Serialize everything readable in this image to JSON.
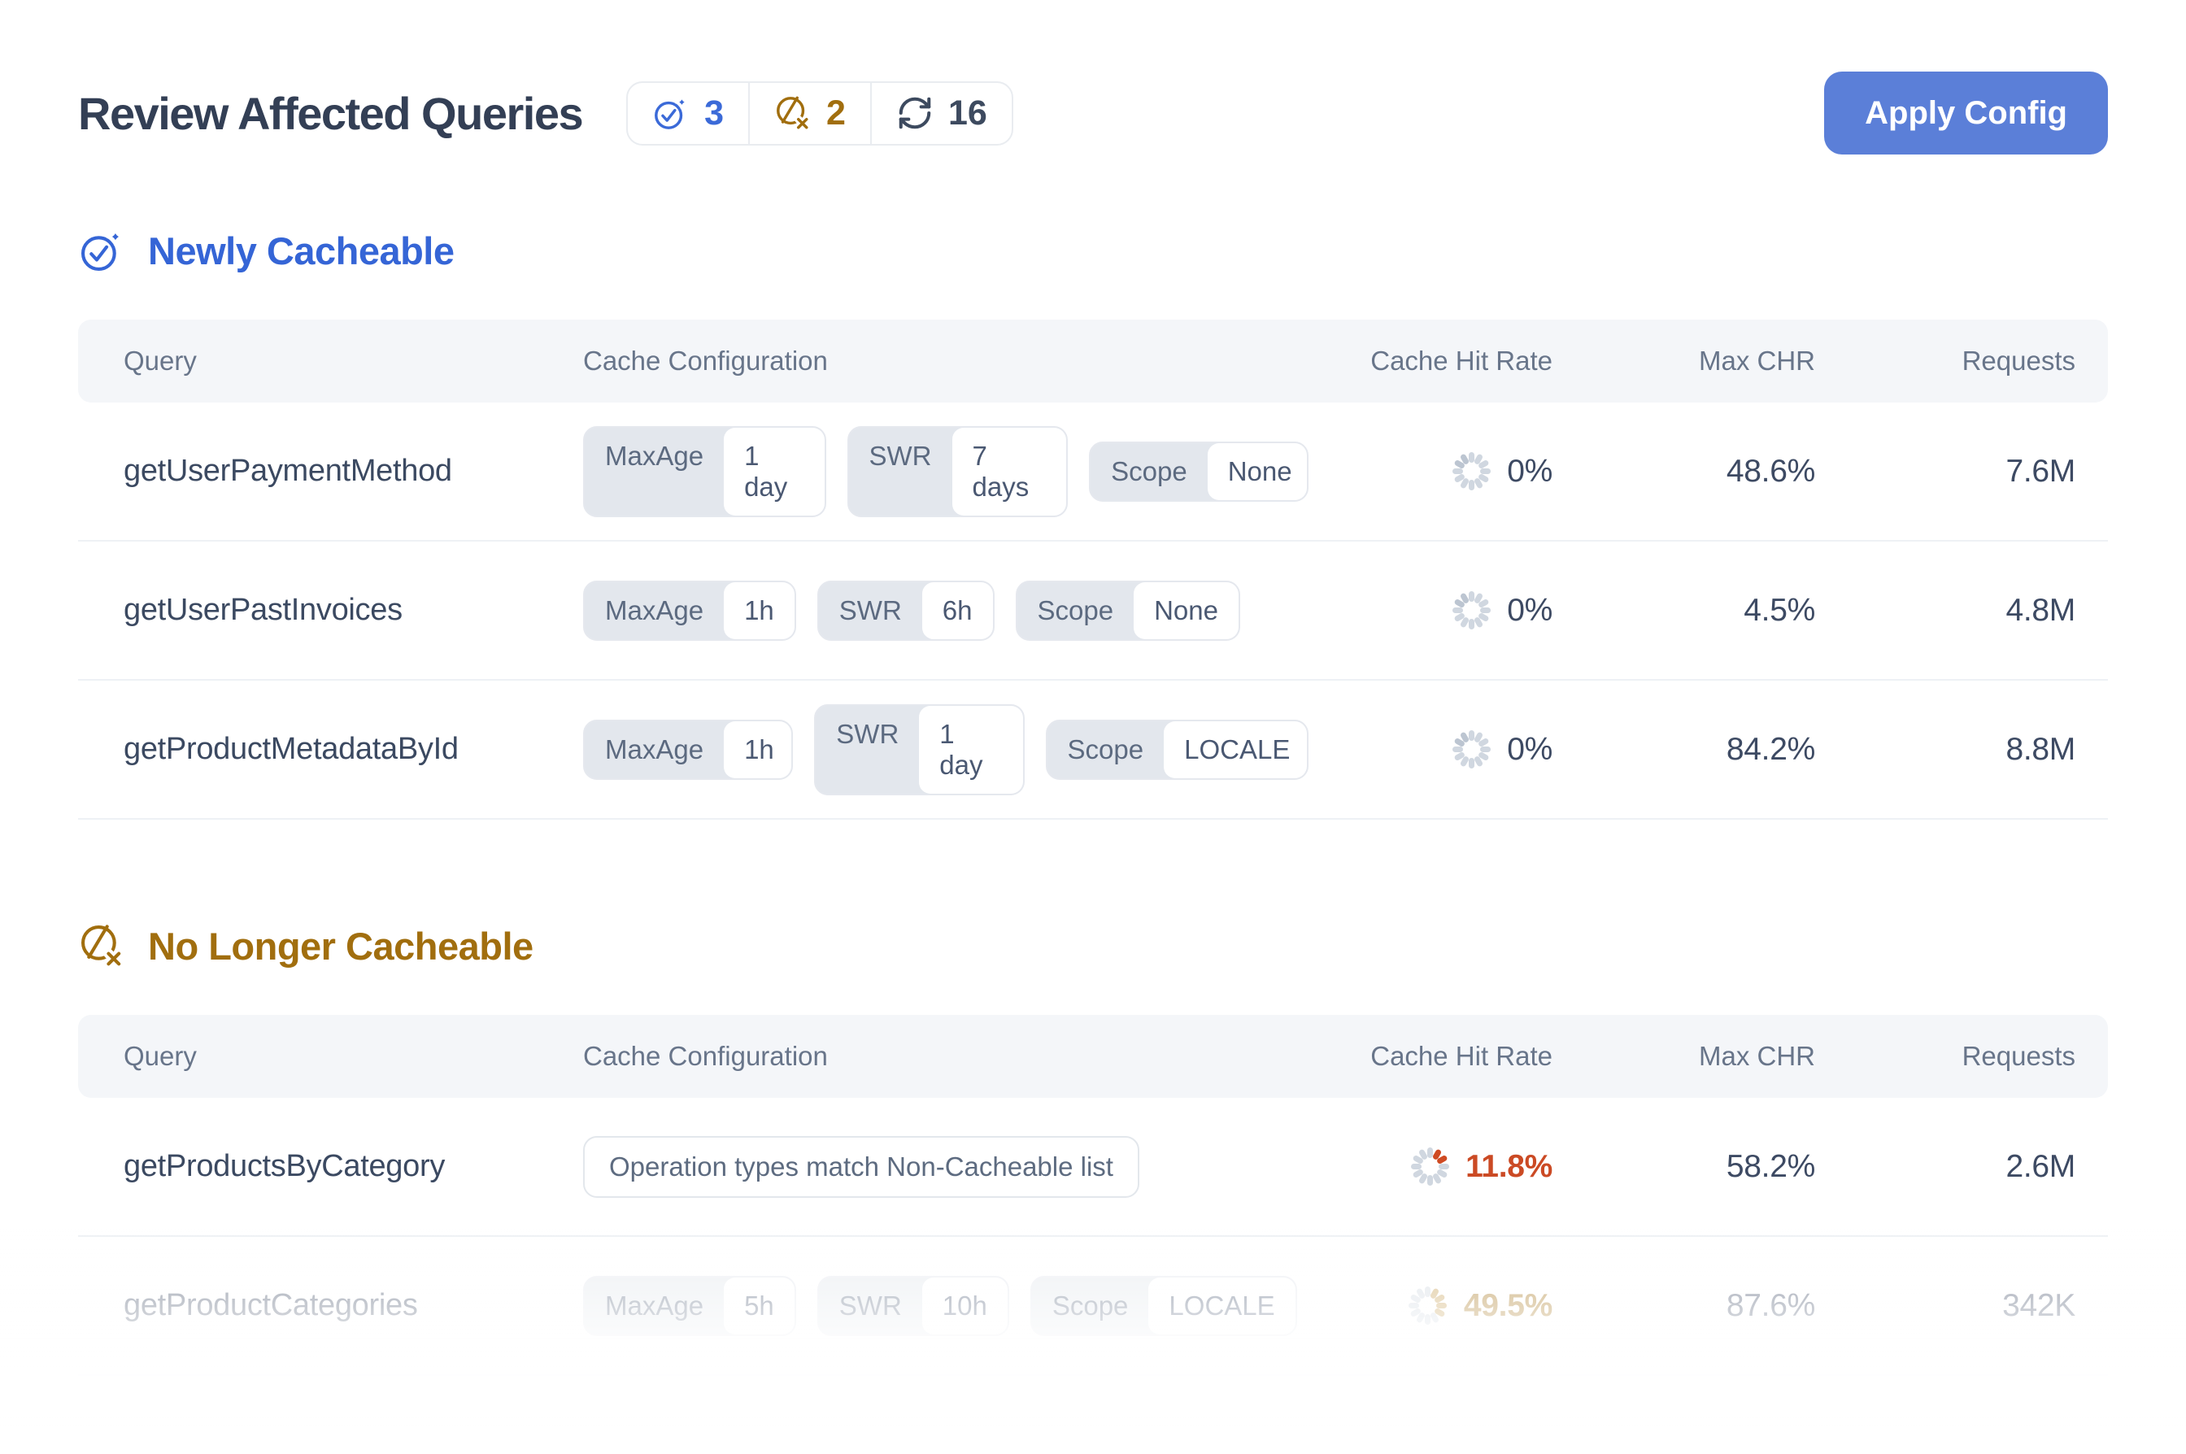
{
  "header": {
    "title": "Review Affected Queries",
    "apply_label": "Apply Config",
    "badges": [
      {
        "name": "newly-cacheable-count",
        "value": "3"
      },
      {
        "name": "no-longer-cacheable-count",
        "value": "2"
      },
      {
        "name": "recheck-count",
        "value": "16"
      }
    ]
  },
  "table_columns": {
    "query": "Query",
    "config": "Cache Configuration",
    "chr": "Cache Hit Rate",
    "max_chr": "Max CHR",
    "requests": "Requests"
  },
  "sections": [
    {
      "title": "Newly Cacheable",
      "rows": [
        {
          "query": "getUserPaymentMethod",
          "chips": [
            {
              "label": "MaxAge",
              "value": "1 day"
            },
            {
              "label": "SWR",
              "value": "7 days"
            },
            {
              "label": "Scope",
              "value": "None"
            }
          ],
          "chr": "0%",
          "max_chr": "48.6%",
          "requests": "7.6M"
        },
        {
          "query": "getUserPastInvoices",
          "chips": [
            {
              "label": "MaxAge",
              "value": "1h"
            },
            {
              "label": "SWR",
              "value": "6h"
            },
            {
              "label": "Scope",
              "value": "None"
            }
          ],
          "chr": "0%",
          "max_chr": "4.5%",
          "requests": "4.8M"
        },
        {
          "query": "getProductMetadataById",
          "chips": [
            {
              "label": "MaxAge",
              "value": "1h"
            },
            {
              "label": "SWR",
              "value": "1 day"
            },
            {
              "label": "Scope",
              "value": "LOCALE"
            }
          ],
          "chr": "0%",
          "max_chr": "84.2%",
          "requests": "8.8M"
        }
      ]
    },
    {
      "title": "No Longer Cacheable",
      "rows": [
        {
          "query": "getProductsByCategory",
          "note": "Operation types match Non-Cacheable list",
          "chr": "11.8%",
          "max_chr": "58.2%",
          "requests": "2.6M"
        },
        {
          "query": "getProductCategories",
          "chips": [
            {
              "label": "MaxAge",
              "value": "5h"
            },
            {
              "label": "SWR",
              "value": "10h"
            },
            {
              "label": "Scope",
              "value": "LOCALE"
            }
          ],
          "chr": "49.5%",
          "max_chr": "87.6%",
          "requests": "342K"
        }
      ]
    }
  ],
  "colors": {
    "accent_blue": "#3b6ad8",
    "accent_amber": "#a16e0e",
    "alert_red": "#cb4a24",
    "button_blue": "#5b7fd8"
  }
}
